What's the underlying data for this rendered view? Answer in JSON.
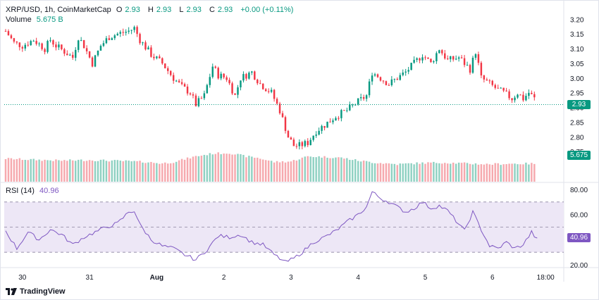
{
  "header": {
    "symbol": "XRP/USD, 1h, CoinMarketCap",
    "o_label": "O",
    "o_value": "2.93",
    "h_label": "H",
    "h_value": "2.93",
    "l_label": "L",
    "l_value": "2.93",
    "c_label": "C",
    "c_value": "2.93",
    "change": "+0.00 (+0.11%)",
    "volume_label": "Volume",
    "volume_value": "5.675 B"
  },
  "rsi_header": {
    "label": "RSI (14)",
    "value": "40.96"
  },
  "branding": {
    "logo_text": "TradingView"
  },
  "colors": {
    "up": "#089981",
    "down": "#f23645",
    "vol_up": "#8fd1c2",
    "vol_down": "#f6a9ae",
    "rsi_line": "#7e57c2",
    "rsi_band": "#ede7f6"
  },
  "chart_data": [
    {
      "type": "candlestick",
      "title": "XRP/USD, 1h, CoinMarketCap",
      "ylim": [
        2.7,
        3.22
      ],
      "y_ticks": [
        "3.20",
        "3.15",
        "3.10",
        "3.05",
        "3.00",
        "2.95",
        "2.90",
        "2.85",
        "2.80",
        "2.75"
      ],
      "last_price_label": "2.93",
      "volume_label": "5.675 B",
      "x_tick_labels": [
        "30",
        "31",
        "Aug",
        "2",
        "3",
        "4",
        "5",
        "6",
        "18:00"
      ],
      "x_tick_index": [
        6,
        30,
        54,
        78,
        102,
        126,
        150,
        174,
        193
      ],
      "total_slots": 200,
      "anchors": [
        [
          0,
          3.16
        ],
        [
          3,
          3.12
        ],
        [
          6,
          3.11
        ],
        [
          10,
          3.13
        ],
        [
          14,
          3.1
        ],
        [
          16,
          3.13
        ],
        [
          18,
          3.11
        ],
        [
          21,
          3.09
        ],
        [
          24,
          3.07
        ],
        [
          26,
          3.14
        ],
        [
          28,
          3.11
        ],
        [
          31,
          3.05
        ],
        [
          34,
          3.11
        ],
        [
          37,
          3.14
        ],
        [
          40,
          3.15
        ],
        [
          44,
          3.16
        ],
        [
          46,
          3.17
        ],
        [
          48,
          3.13
        ],
        [
          52,
          3.08
        ],
        [
          56,
          3.05
        ],
        [
          60,
          3.0
        ],
        [
          63,
          2.97
        ],
        [
          66,
          2.95
        ],
        [
          68,
          2.91
        ],
        [
          71,
          2.94
        ],
        [
          74,
          3.04
        ],
        [
          76,
          3.01
        ],
        [
          79,
          3.0
        ],
        [
          82,
          2.94
        ],
        [
          84,
          3.0
        ],
        [
          88,
          3.02
        ],
        [
          91,
          2.98
        ],
        [
          95,
          2.95
        ],
        [
          98,
          2.89
        ],
        [
          101,
          2.8
        ],
        [
          103,
          2.77
        ],
        [
          105,
          2.77
        ],
        [
          108,
          2.78
        ],
        [
          111,
          2.82
        ],
        [
          114,
          2.84
        ],
        [
          118,
          2.87
        ],
        [
          122,
          2.89
        ],
        [
          126,
          2.92
        ],
        [
          129,
          2.94
        ],
        [
          131,
          3.02
        ],
        [
          134,
          3.0
        ],
        [
          137,
          2.98
        ],
        [
          140,
          3.0
        ],
        [
          143,
          3.02
        ],
        [
          146,
          3.05
        ],
        [
          149,
          3.08
        ],
        [
          152,
          3.05
        ],
        [
          155,
          3.1
        ],
        [
          158,
          3.06
        ],
        [
          162,
          3.07
        ],
        [
          166,
          3.03
        ],
        [
          168,
          3.09
        ],
        [
          170,
          3.0
        ],
        [
          173,
          2.98
        ],
        [
          176,
          2.96
        ],
        [
          178,
          2.95
        ],
        [
          181,
          2.93
        ],
        [
          183,
          2.95
        ],
        [
          185,
          2.93
        ],
        [
          187,
          2.95
        ],
        [
          189,
          2.93
        ]
      ],
      "volume_anchors": [
        [
          0,
          0.82
        ],
        [
          10,
          0.78
        ],
        [
          20,
          0.75
        ],
        [
          30,
          0.77
        ],
        [
          40,
          0.74
        ],
        [
          50,
          0.7
        ],
        [
          56,
          0.65
        ],
        [
          60,
          0.7
        ],
        [
          68,
          0.9
        ],
        [
          74,
          1.0
        ],
        [
          80,
          1.02
        ],
        [
          86,
          0.9
        ],
        [
          90,
          0.85
        ],
        [
          96,
          0.7
        ],
        [
          102,
          0.72
        ],
        [
          108,
          0.9
        ],
        [
          114,
          0.88
        ],
        [
          120,
          0.85
        ],
        [
          126,
          0.75
        ],
        [
          132,
          0.68
        ],
        [
          140,
          0.62
        ],
        [
          148,
          0.66
        ],
        [
          156,
          0.68
        ],
        [
          164,
          0.65
        ],
        [
          172,
          0.62
        ],
        [
          180,
          0.64
        ],
        [
          189,
          0.64
        ]
      ]
    },
    {
      "type": "line",
      "title": "RSI (14)",
      "ylim": [
        20,
        80
      ],
      "y_ticks": [
        "80.00",
        "60.00",
        "20.00"
      ],
      "bands": {
        "upper": 70,
        "mid": 50,
        "lower": 30
      },
      "last_value_label": "40.96",
      "anchors": [
        [
          0,
          47
        ],
        [
          4,
          33
        ],
        [
          8,
          46
        ],
        [
          12,
          40
        ],
        [
          16,
          48
        ],
        [
          20,
          44
        ],
        [
          24,
          36
        ],
        [
          28,
          42
        ],
        [
          32,
          46
        ],
        [
          36,
          50
        ],
        [
          40,
          53
        ],
        [
          44,
          62
        ],
        [
          46,
          63
        ],
        [
          48,
          52
        ],
        [
          52,
          40
        ],
        [
          56,
          35
        ],
        [
          60,
          33
        ],
        [
          64,
          28
        ],
        [
          68,
          24
        ],
        [
          72,
          32
        ],
        [
          76,
          43
        ],
        [
          80,
          42
        ],
        [
          84,
          44
        ],
        [
          88,
          38
        ],
        [
          92,
          36
        ],
        [
          96,
          28
        ],
        [
          100,
          22
        ],
        [
          103,
          25
        ],
        [
          106,
          30
        ],
        [
          110,
          38
        ],
        [
          114,
          42
        ],
        [
          118,
          47
        ],
        [
          122,
          54
        ],
        [
          126,
          60
        ],
        [
          129,
          66
        ],
        [
          131,
          78
        ],
        [
          134,
          73
        ],
        [
          137,
          70
        ],
        [
          140,
          66
        ],
        [
          143,
          62
        ],
        [
          146,
          65
        ],
        [
          149,
          70
        ],
        [
          152,
          65
        ],
        [
          155,
          67
        ],
        [
          158,
          63
        ],
        [
          161,
          55
        ],
        [
          164,
          47
        ],
        [
          167,
          62
        ],
        [
          170,
          48
        ],
        [
          173,
          35
        ],
        [
          176,
          33
        ],
        [
          179,
          38
        ],
        [
          182,
          33
        ],
        [
          185,
          36
        ],
        [
          188,
          46
        ],
        [
          190,
          40
        ]
      ]
    }
  ]
}
